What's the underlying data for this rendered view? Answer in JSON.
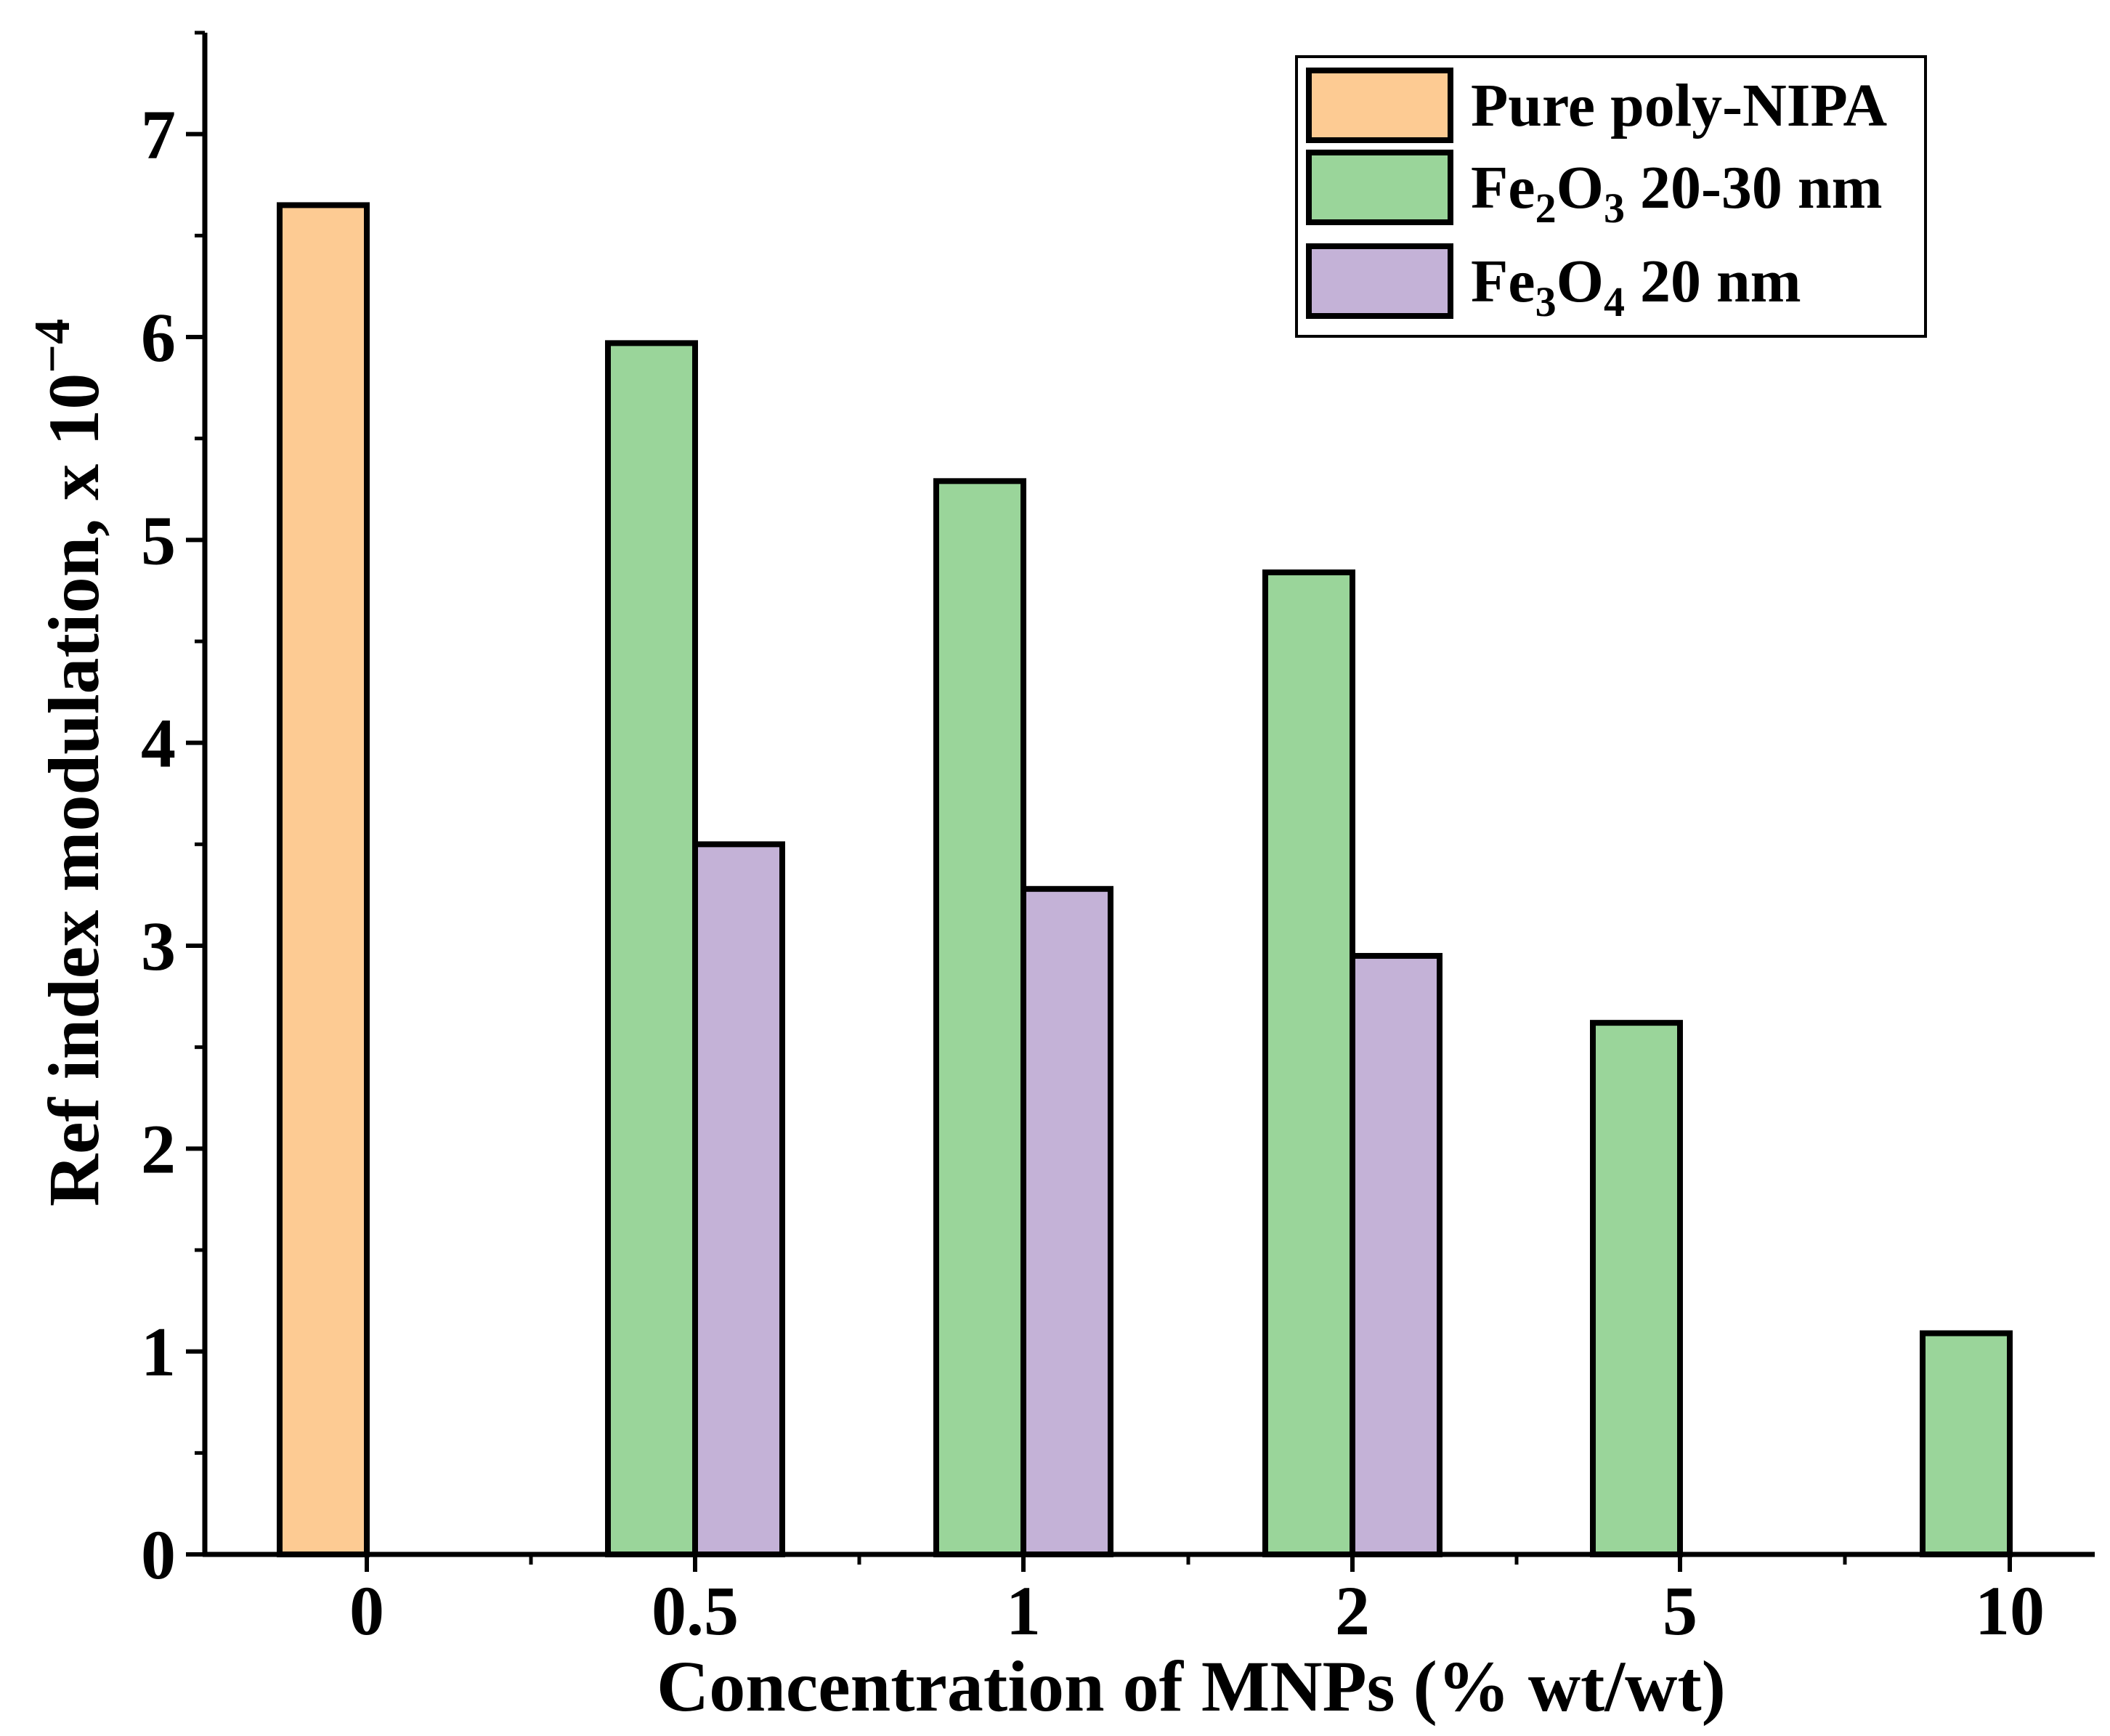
{
  "chart_data": {
    "type": "bar",
    "title": "",
    "xlabel": "Concentration of MNPs (% wt/wt)",
    "ylabel": "Ref index modulation, x 10",
    "ylabel_exponent": "−4",
    "categories": [
      "0",
      "0.5",
      "1",
      "2",
      "5",
      "10"
    ],
    "ylim": [
      0,
      7.5
    ],
    "yticks": [
      "0",
      "1",
      "2",
      "3",
      "4",
      "5",
      "6",
      "7"
    ],
    "legend_position": "top-right",
    "series": [
      {
        "name": "Pure poly-NIPA",
        "legend_parts": [
          {
            "t": "Pure poly-NIPA",
            "sub": false
          }
        ],
        "color": "#FDCB93",
        "values": [
          6.65,
          null,
          null,
          null,
          null,
          null
        ]
      },
      {
        "name": "Fe2O3 20-30 nm",
        "legend_parts": [
          {
            "t": "Fe",
            "sub": false
          },
          {
            "t": "2",
            "sub": true
          },
          {
            "t": "O",
            "sub": false
          },
          {
            "t": "3",
            "sub": true
          },
          {
            "t": " 20-30 nm",
            "sub": false
          }
        ],
        "color": "#9AD59A",
        "values": [
          null,
          5.97,
          5.29,
          4.84,
          2.62,
          1.09
        ]
      },
      {
        "name": "Fe3O4 20 nm",
        "legend_parts": [
          {
            "t": "Fe",
            "sub": false
          },
          {
            "t": "3",
            "sub": true
          },
          {
            "t": "O",
            "sub": false
          },
          {
            "t": "4",
            "sub": true
          },
          {
            "t": " 20 nm",
            "sub": false
          }
        ],
        "color": "#C4B2D7",
        "values": [
          null,
          3.5,
          3.28,
          2.95,
          null,
          null
        ]
      }
    ]
  }
}
